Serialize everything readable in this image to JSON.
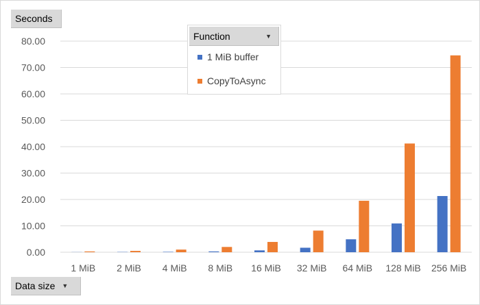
{
  "chart_data": {
    "type": "bar",
    "ylabel": "Seconds",
    "xlabel": "Data size",
    "legend_title": "Function",
    "legend_placement": "top-center",
    "grid": true,
    "ylim": [
      0,
      80
    ],
    "yticks": [
      "0.00",
      "10.00",
      "20.00",
      "30.00",
      "40.00",
      "50.00",
      "60.00",
      "70.00",
      "80.00"
    ],
    "categories": [
      "1 MiB",
      "2 MiB",
      "4 MiB",
      "8 MiB",
      "16 MiB",
      "32 MiB",
      "64 MiB",
      "128 MiB",
      "256 MiB"
    ],
    "series": [
      {
        "name": "1 MiB buffer",
        "color": "#4472c4",
        "values": [
          0.05,
          0.1,
          0.15,
          0.3,
          0.7,
          1.7,
          4.9,
          10.9,
          21.3
        ]
      },
      {
        "name": "CopyToAsync",
        "color": "#ed7d31",
        "values": [
          0.3,
          0.5,
          1.0,
          2.0,
          3.9,
          8.2,
          19.5,
          41.2,
          74.6
        ]
      }
    ]
  },
  "ui": {
    "dropdown_icon": "triangle-down-icon"
  }
}
